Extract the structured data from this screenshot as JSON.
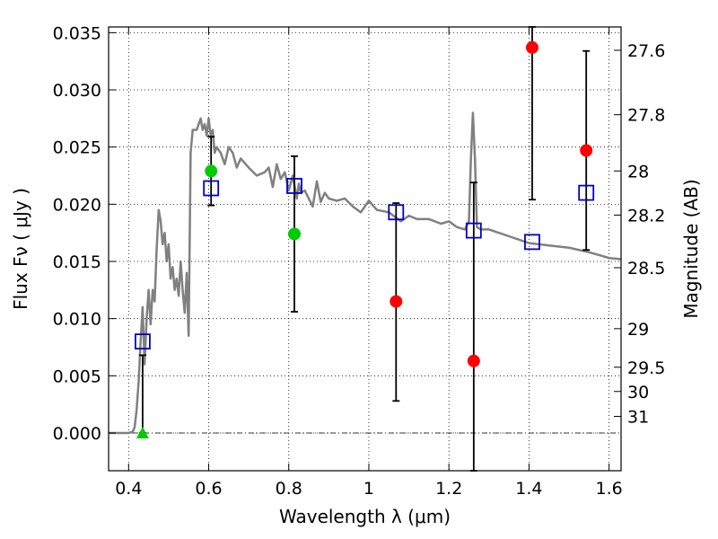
{
  "chart_data": {
    "type": "scatter",
    "xlabel": "Wavelength  λ (μm)",
    "ylabel": "Flux  Fν  ( μJy )",
    "ylabel2": "Magnitude (AB)",
    "xlim": [
      0.35,
      1.63
    ],
    "ylim": [
      -0.0033,
      0.0355
    ],
    "grid": true,
    "x_ticks": [
      0.4,
      0.6,
      0.8,
      1.0,
      1.2,
      1.4,
      1.6
    ],
    "x_tick_labels": [
      "0.4",
      "0.6",
      "0.8",
      "1",
      "1.2",
      "1.4",
      "1.6"
    ],
    "y_ticks": [
      0.0,
      0.005,
      0.01,
      0.015,
      0.02,
      0.025,
      0.03,
      0.035
    ],
    "y_tick_labels": [
      "0.000",
      "0.005",
      "0.010",
      "0.015",
      "0.020",
      "0.025",
      "0.030",
      "0.035"
    ],
    "mag_ticks": [
      {
        "label": "27.6",
        "flux": 0.03346
      },
      {
        "label": "27.8",
        "flux": 0.02783
      },
      {
        "label": "28",
        "flux": 0.02291
      },
      {
        "label": "28.2",
        "flux": 0.01905
      },
      {
        "label": "28.5",
        "flux": 0.01445
      },
      {
        "label": "29",
        "flux": 0.00912
      },
      {
        "label": "29.5",
        "flux": 0.00575
      },
      {
        "label": "30",
        "flux": 0.00363
      },
      {
        "label": "31",
        "flux": 0.00145
      }
    ],
    "model_spectrum": {
      "color": "#808080",
      "x": [
        0.35,
        0.4,
        0.41,
        0.415,
        0.42,
        0.425,
        0.43,
        0.435,
        0.44,
        0.445,
        0.45,
        0.455,
        0.46,
        0.465,
        0.47,
        0.475,
        0.48,
        0.485,
        0.49,
        0.495,
        0.5,
        0.505,
        0.51,
        0.515,
        0.52,
        0.525,
        0.53,
        0.535,
        0.54,
        0.545,
        0.55,
        0.555,
        0.56,
        0.57,
        0.58,
        0.585,
        0.59,
        0.595,
        0.6,
        0.605,
        0.61,
        0.615,
        0.62,
        0.63,
        0.64,
        0.65,
        0.66,
        0.67,
        0.68,
        0.7,
        0.72,
        0.74,
        0.75,
        0.76,
        0.77,
        0.78,
        0.79,
        0.8,
        0.81,
        0.82,
        0.825,
        0.83,
        0.84,
        0.85,
        0.86,
        0.87,
        0.88,
        0.89,
        0.9,
        0.92,
        0.94,
        0.96,
        0.98,
        1.0,
        1.02,
        1.05,
        1.08,
        1.1,
        1.12,
        1.15,
        1.18,
        1.2,
        1.22,
        1.24,
        1.25,
        1.255,
        1.26,
        1.265,
        1.27,
        1.28,
        1.3,
        1.35,
        1.4,
        1.45,
        1.5,
        1.55,
        1.58,
        1.6,
        1.63
      ],
      "y": [
        0.0,
        0.0,
        0.0001,
        0.0005,
        0.002,
        0.0045,
        0.008,
        0.011,
        0.006,
        0.01,
        0.0125,
        0.0095,
        0.0125,
        0.0115,
        0.016,
        0.0195,
        0.0185,
        0.0165,
        0.0175,
        0.015,
        0.0165,
        0.0135,
        0.0145,
        0.0125,
        0.0135,
        0.012,
        0.015,
        0.0125,
        0.0105,
        0.014,
        0.0085,
        0.0245,
        0.0265,
        0.0265,
        0.0275,
        0.0265,
        0.027,
        0.026,
        0.0275,
        0.026,
        0.0265,
        0.0245,
        0.025,
        0.0245,
        0.0235,
        0.025,
        0.0245,
        0.0232,
        0.024,
        0.0232,
        0.0225,
        0.0228,
        0.0232,
        0.0215,
        0.0235,
        0.0222,
        0.0228,
        0.0212,
        0.0225,
        0.0205,
        0.0218,
        0.021,
        0.0212,
        0.0205,
        0.0198,
        0.022,
        0.0202,
        0.021,
        0.0205,
        0.0203,
        0.0205,
        0.0198,
        0.0193,
        0.0203,
        0.0195,
        0.0193,
        0.0185,
        0.019,
        0.0187,
        0.0187,
        0.0183,
        0.0185,
        0.018,
        0.0178,
        0.0185,
        0.024,
        0.028,
        0.024,
        0.018,
        0.0178,
        0.0178,
        0.0172,
        0.0166,
        0.0164,
        0.0162,
        0.0158,
        0.0155,
        0.0153,
        0.0152
      ]
    },
    "model_points": {
      "marker": "open-square",
      "color": "#0000cc",
      "x": [
        0.435,
        0.606,
        0.814,
        1.068,
        1.262,
        1.408,
        1.543
      ],
      "y": [
        0.008,
        0.0214,
        0.0216,
        0.0193,
        0.0177,
        0.0167,
        0.021
      ]
    },
    "detections": {
      "marker": "circle",
      "color": "#00cc00",
      "x": [
        0.606,
        0.814
      ],
      "y": [
        0.0229,
        0.0174
      ],
      "yerr": [
        0.003,
        0.0068
      ]
    },
    "upper_limit": {
      "marker": "triangle",
      "color": "#00cc00",
      "x": [
        0.435
      ],
      "y": [
        0.0
      ],
      "yerr": [
        0.0068
      ]
    },
    "nir_points": {
      "marker": "circle",
      "color": "#ff0000",
      "x": [
        1.068,
        1.262,
        1.408,
        1.543
      ],
      "y": [
        0.0115,
        0.0063,
        0.0337,
        0.0247
      ],
      "err_low": [
        0.0028,
        -0.0033,
        0.0204,
        0.016
      ],
      "err_high": [
        0.0201,
        0.0219,
        0.0355,
        0.0334
      ]
    },
    "hline_y": 0.0
  }
}
